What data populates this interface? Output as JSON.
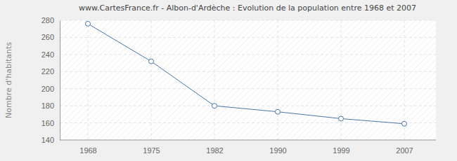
{
  "chart_data": {
    "type": "line",
    "title": "www.CartesFrance.fr - Albon-d'Ardèche : Evolution de la population entre 1968 et 2007",
    "y_label": "Nombre d'habitants",
    "categories": [
      "1968",
      "1975",
      "1982",
      "1990",
      "1999",
      "2007"
    ],
    "values": [
      276,
      232,
      180,
      173,
      165,
      159
    ],
    "color": "#4a76a8",
    "marker": "circle",
    "ylim": [
      140,
      280
    ],
    "yticks": [
      140,
      160,
      180,
      200,
      220,
      240,
      260,
      280
    ],
    "grid": true
  }
}
